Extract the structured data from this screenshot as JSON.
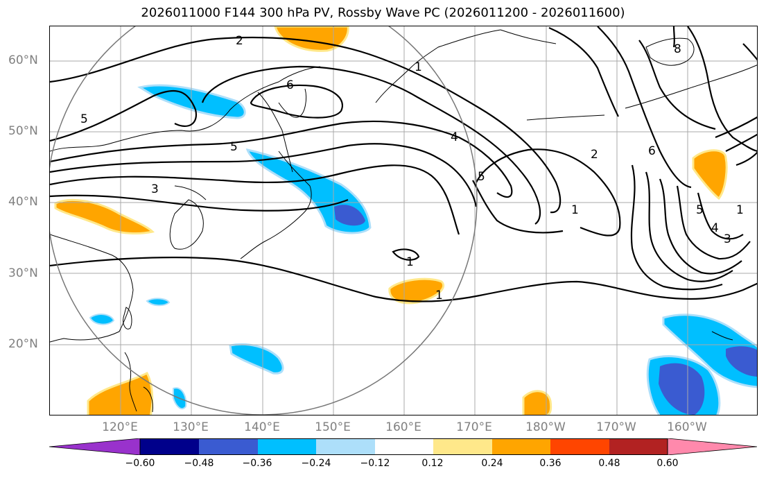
{
  "title": "2026011000 F144 300 hPa PV, Rossby Wave PC (2026011200 - 2026011600)",
  "latitude_labels": [
    "60°N",
    "50°N",
    "40°N",
    "30°N",
    "20°N"
  ],
  "longitude_labels": [
    "120°E",
    "130°E",
    "140°E",
    "150°E",
    "160°E",
    "170°E",
    "180°W",
    "170°W",
    "160°W"
  ],
  "contour_labels": [
    "2",
    "6",
    "5",
    "5",
    "3",
    "1",
    "4",
    "5",
    "1",
    "1",
    "1",
    "2",
    "6",
    "5",
    "4",
    "3",
    "1",
    "8"
  ],
  "colorbar": {
    "tick_labels": [
      "−0.60",
      "−0.48",
      "−0.36",
      "−0.24",
      "−0.12",
      "0.12",
      "0.24",
      "0.36",
      "0.48",
      "0.60"
    ],
    "colors": [
      "#9932CC",
      "#00008B",
      "#3A5BD1",
      "#00BFFF",
      "#ADDFFA",
      "#FFFFFF",
      "#FFE88A",
      "#FFA500",
      "#FF4500",
      "#B22222",
      "#FF89AC"
    ]
  }
}
